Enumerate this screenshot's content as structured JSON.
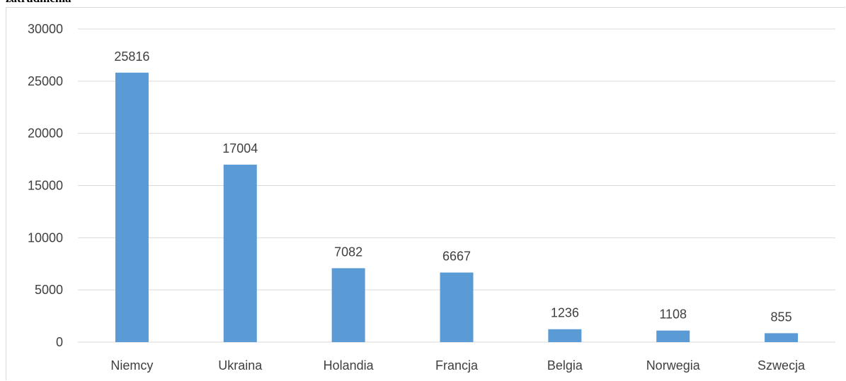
{
  "heading": "zatrudnienia",
  "chart_data": {
    "type": "bar",
    "title": "",
    "xlabel": "",
    "ylabel": "",
    "categories": [
      "Niemcy",
      "Ukraina",
      "Holandia",
      "Francja",
      "Belgia",
      "Norwegia",
      "Szwecja"
    ],
    "values": [
      25816,
      17004,
      7082,
      6667,
      1236,
      1108,
      855
    ],
    "data_labels": [
      "25816",
      "17004",
      "7082",
      "6667",
      "1236",
      "1108",
      "855"
    ],
    "ylim": [
      0,
      30000
    ],
    "yticks": [
      "0",
      "5000",
      "10000",
      "15000",
      "20000",
      "25000",
      "30000"
    ],
    "ytick_values": [
      0,
      5000,
      10000,
      15000,
      20000,
      25000,
      30000
    ],
    "grid": true,
    "legend": "none",
    "colors": {
      "bar": "#5b9bd5",
      "grid": "#d9d9d9",
      "text": "#3f3f3f"
    }
  }
}
